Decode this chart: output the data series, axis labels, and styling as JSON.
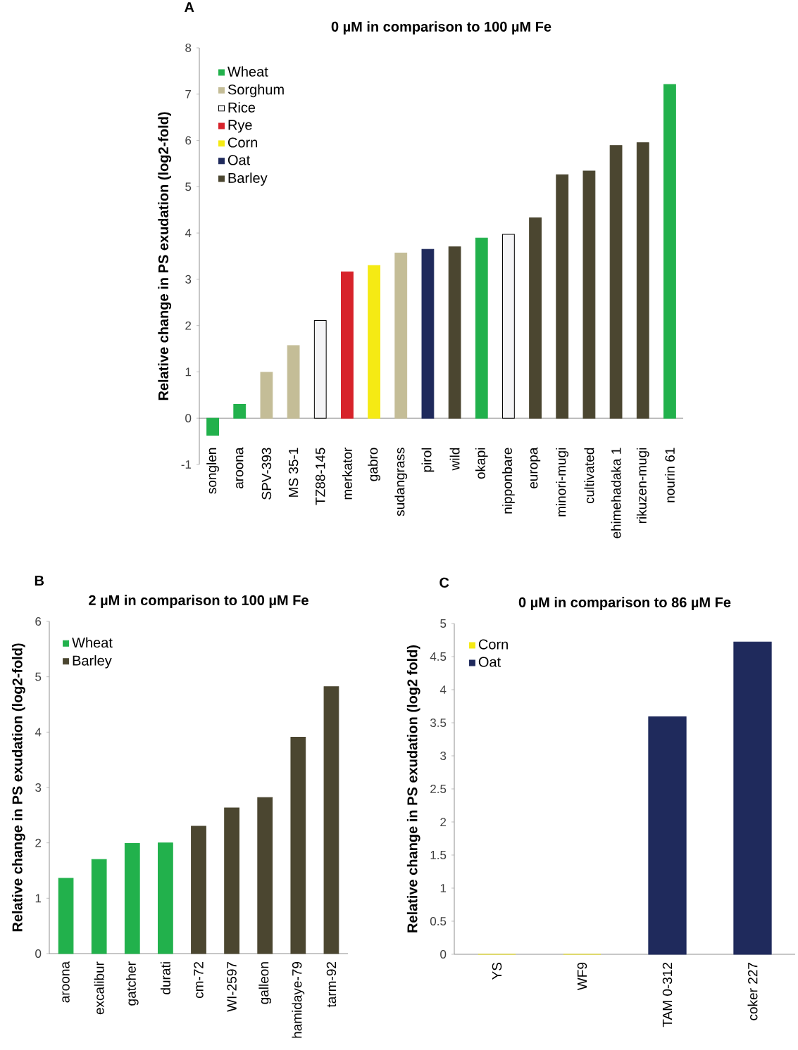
{
  "chart_data": [
    {
      "type": "bar",
      "title": "0 µM in comparison to 100 µM Fe",
      "annotations": [
        "A"
      ],
      "ylabel": "Relative change in PS exudation (log2-fold)",
      "categories": [
        "songlen",
        "aroona",
        "SPV-393",
        "MS 35-1",
        "TZ88-145",
        "merkator",
        "gabro",
        "sudangrass",
        "pirol",
        "wild",
        "okapi",
        "nipponbare",
        "europa",
        "minori-mugi",
        "cultivated",
        "ehimehadaka 1",
        "rikuzen-mugi",
        "nourin 61"
      ],
      "series": [
        {
          "name": "Wheat",
          "color": "#22b14c",
          "values": [
            -0.37,
            0.3,
            null,
            null,
            null,
            null,
            null,
            null,
            null,
            null,
            3.89,
            null,
            null,
            null,
            null,
            null,
            null,
            7.21
          ]
        },
        {
          "name": "Sorghum",
          "color": "#c4bd97",
          "values": [
            null,
            null,
            0.99,
            1.57,
            null,
            null,
            null,
            3.57,
            null,
            null,
            null,
            null,
            null,
            null,
            null,
            null,
            null,
            null
          ]
        },
        {
          "name": "Rice",
          "color": "#f4f4f6",
          "values": [
            null,
            null,
            null,
            null,
            2.11,
            null,
            null,
            null,
            null,
            null,
            null,
            3.97,
            null,
            null,
            null,
            null,
            null,
            null
          ]
        },
        {
          "name": "Rye",
          "color": "#d7232b",
          "values": [
            null,
            null,
            null,
            null,
            null,
            3.16,
            null,
            null,
            null,
            null,
            null,
            null,
            null,
            null,
            null,
            null,
            null,
            null
          ]
        },
        {
          "name": "Corn",
          "color": "#f5ea14",
          "values": [
            null,
            null,
            null,
            null,
            null,
            null,
            3.3,
            null,
            null,
            null,
            null,
            null,
            null,
            null,
            null,
            null,
            null,
            null
          ]
        },
        {
          "name": "Oat",
          "color": "#1f2a5c",
          "values": [
            null,
            null,
            null,
            null,
            null,
            null,
            null,
            null,
            3.65,
            null,
            null,
            null,
            null,
            null,
            null,
            null,
            null,
            null
          ]
        },
        {
          "name": "Barley",
          "color": "#4b4630",
          "values": [
            null,
            null,
            null,
            null,
            null,
            null,
            null,
            null,
            null,
            3.7,
            null,
            null,
            4.33,
            5.26,
            5.34,
            5.89,
            5.95,
            null
          ]
        }
      ],
      "ylim": [
        -1,
        8
      ],
      "yticks": [
        -1,
        0,
        1,
        2,
        3,
        4,
        5,
        6,
        7,
        8
      ],
      "legend": "top left"
    },
    {
      "type": "bar",
      "title": "2 µM in comparison to 100 µM Fe",
      "annotations": [
        "B"
      ],
      "ylabel": "Relative change in PS exudation (log2-fold)",
      "categories": [
        "aroona",
        "excalibur",
        "gatcher",
        "durati",
        "cm-72",
        "WI-2597",
        "galleon",
        "hamidaye-79",
        "tarm-92"
      ],
      "series": [
        {
          "name": "Wheat",
          "color": "#22b14c",
          "values": [
            1.36,
            1.7,
            1.99,
            2.0,
            null,
            null,
            null,
            null,
            null
          ]
        },
        {
          "name": "Barley",
          "color": "#4b4630",
          "values": [
            null,
            null,
            null,
            null,
            2.3,
            2.63,
            2.82,
            3.91,
            4.82
          ]
        }
      ],
      "ylim": [
        0,
        6
      ],
      "yticks": [
        0,
        1,
        2,
        3,
        4,
        5,
        6
      ],
      "legend": "top left"
    },
    {
      "type": "bar",
      "title": "0 µM in comparison to 86 µM Fe",
      "annotations": [
        "C"
      ],
      "ylabel": "Relative change in PS exudation (log2 fold)",
      "categories": [
        "YS",
        "WF9",
        "TAM 0-312",
        "coker 227"
      ],
      "series": [
        {
          "name": "Corn",
          "color": "#f5ea14",
          "values": [
            0,
            0,
            null,
            null
          ]
        },
        {
          "name": "Oat",
          "color": "#1f2a5c",
          "values": [
            null,
            null,
            3.59,
            4.72
          ]
        }
      ],
      "ylim": [
        0,
        5
      ],
      "yticks": [
        0,
        0.5,
        1,
        1.5,
        2,
        2.5,
        3,
        3.5,
        4,
        4.5,
        5
      ],
      "legend": "top left"
    }
  ]
}
